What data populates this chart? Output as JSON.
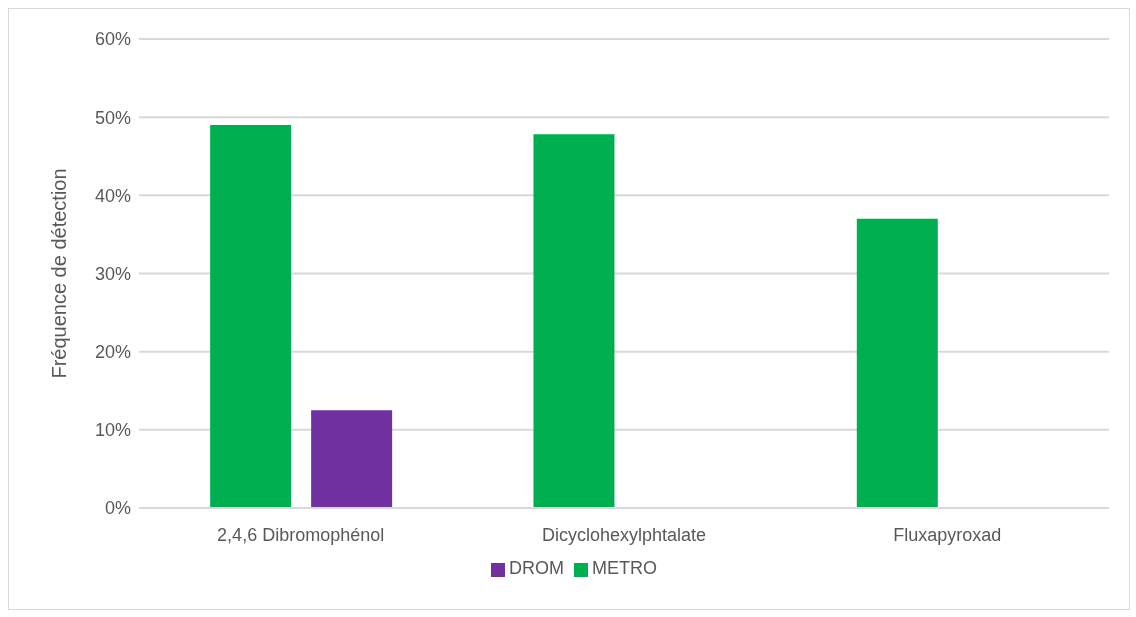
{
  "chart_data": {
    "type": "bar",
    "ylabel": "Fréquence de détection",
    "categories": [
      "2,4,6 Dibromophénol",
      "Dicyclohexylphtalate",
      "Fluxapyroxad"
    ],
    "series": [
      {
        "name": "METRO",
        "color": "#00b050",
        "values": [
          49,
          47.8,
          37
        ]
      },
      {
        "name": "DROM",
        "color": "#7030a0",
        "values": [
          12.5,
          0,
          0
        ]
      }
    ],
    "ylim": [
      0,
      60
    ],
    "yticks": [
      {
        "value": 0,
        "label": "0%"
      },
      {
        "value": 10,
        "label": "10%"
      },
      {
        "value": 20,
        "label": "20%"
      },
      {
        "value": 30,
        "label": "30%"
      },
      {
        "value": 40,
        "label": "40%"
      },
      {
        "value": 50,
        "label": "50%"
      },
      {
        "value": 60,
        "label": "60%"
      }
    ],
    "grid": "y",
    "legend": "bottom"
  }
}
